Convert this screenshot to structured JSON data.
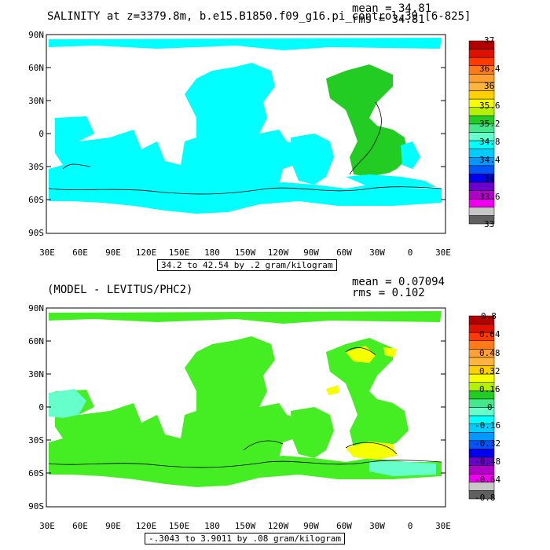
{
  "panels": [
    {
      "title": "SALINITY at z=3379.8m, b.e15.B1850.f09_g16.pi_control.39 [6-825]",
      "mean": "mean = 34.81",
      "rms": "rms = 34.81",
      "range_label": "34.2 to 42.54 by .2 gram/kilogram",
      "colorbar_labels": [
        "37",
        "36.4",
        "36",
        "35.6",
        "35.2",
        "34.8",
        "34.4",
        "34",
        "33.6",
        "33"
      ],
      "colorbar_colors": [
        "#b00000",
        "#e01000",
        "#ff3a00",
        "#ff7a1a",
        "#ffa030",
        "#ffb43c",
        "#ffd000",
        "#f5ff00",
        "#b4f000",
        "#22cc22",
        "#44e88a",
        "#66ffcc",
        "#00ffff",
        "#00ccff",
        "#0099ff",
        "#0055ff",
        "#0000ee",
        "#6a00cc",
        "#b000c8",
        "#ee00ee",
        "#c8c8c8",
        "#606060"
      ]
    },
    {
      "title": "(MODEL - LEVITUS/PHC2)",
      "mean": "mean = 0.07094",
      "rms": "rms = 0.102",
      "range_label": "-.3043 to 3.9011 by .08 gram/kilogram",
      "colorbar_labels": [
        "0.8",
        "0.64",
        "0.48",
        "0.32",
        "0.16",
        "0",
        "-0.16",
        "-0.32",
        "-0.48",
        "-0.64",
        "-0.8"
      ],
      "colorbar_colors": [
        "#b00000",
        "#e01000",
        "#ff3a00",
        "#ff7a1a",
        "#ffa030",
        "#ffb43c",
        "#ffd000",
        "#f5ff00",
        "#b4f000",
        "#22cc22",
        "#44e88a",
        "#66ffcc",
        "#00ffff",
        "#00ccff",
        "#0099ff",
        "#0055ff",
        "#0000ee",
        "#6a00cc",
        "#b000c8",
        "#ee00ee",
        "#c8c8c8",
        "#606060"
      ]
    }
  ],
  "axes": {
    "y_labels": [
      "90N",
      "60N",
      "30N",
      "0",
      "30S",
      "60S",
      "90S"
    ],
    "x_labels": [
      "30E",
      "60E",
      "90E",
      "120E",
      "150E",
      "180",
      "150W",
      "120W",
      "90W",
      "60W",
      "30W",
      "0",
      "30E"
    ]
  },
  "colors": {
    "fill_top": "#00ffff",
    "fill_bottom_main": "#44ee22",
    "fill_bottom_pos": "#f5ff00",
    "fill_bottom_neg": "#66ffcc",
    "contour": "#000000"
  }
}
